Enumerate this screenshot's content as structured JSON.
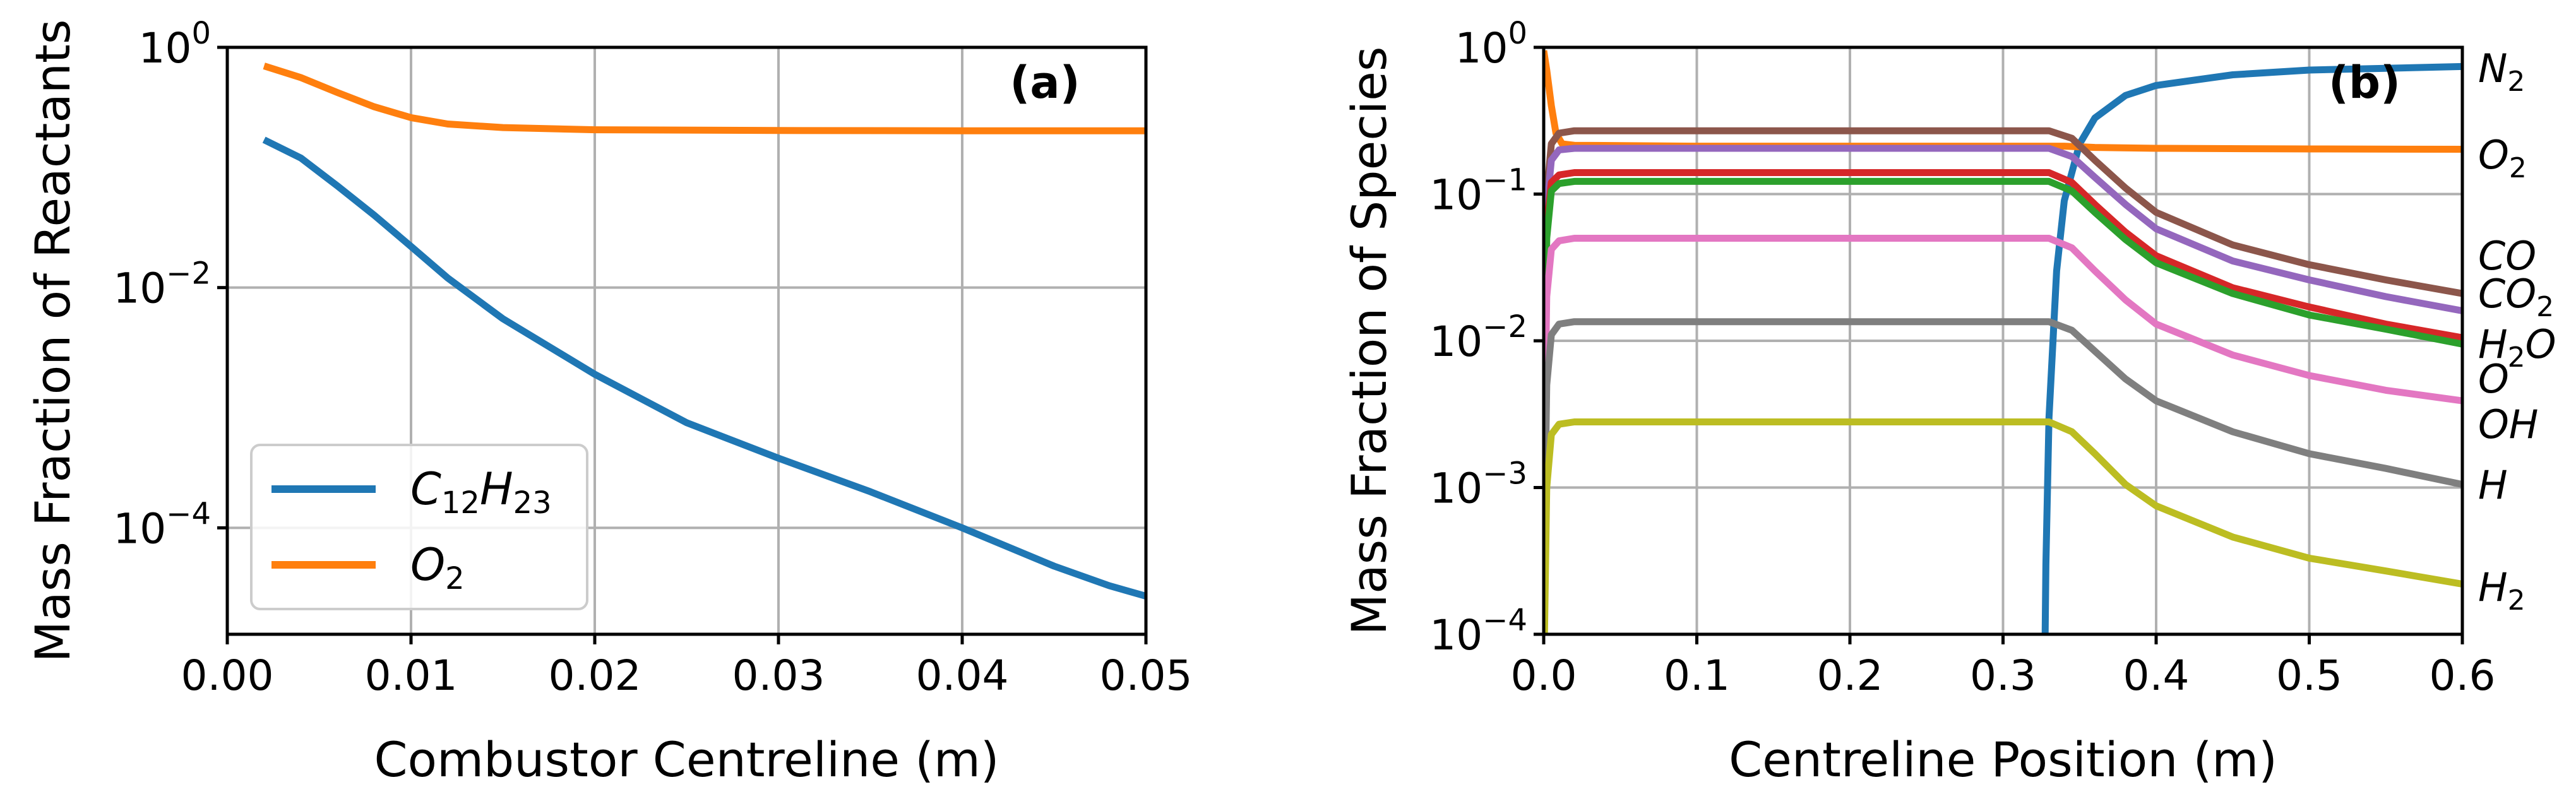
{
  "chart_data": [
    {
      "type": "line",
      "panel_label": "(a)",
      "xlabel": "Combustor Centreline (m)",
      "ylabel": "Mass Fraction of Reactants",
      "x_scale": "linear",
      "y_scale": "log",
      "xlim": [
        0.0,
        0.05
      ],
      "ylim": [
        1.3e-05,
        1.0
      ],
      "grid": true,
      "legend_position": "lower-left",
      "x_ticks": [
        0.0,
        0.01,
        0.02,
        0.03,
        0.04,
        0.05
      ],
      "x_tick_labels": [
        "0.00",
        "0.01",
        "0.02",
        "0.03",
        "0.04",
        "0.05"
      ],
      "y_ticks": [
        0.0001,
        0.01,
        1.0
      ],
      "y_tick_labels": [
        {
          "base": "10",
          "exp": "−4"
        },
        {
          "base": "10",
          "exp": "−2"
        },
        {
          "base": "10",
          "exp": "0"
        }
      ],
      "series": [
        {
          "name": "C12H23",
          "legend": {
            "letter1": "C",
            "sub1": "12",
            "letter2": "H",
            "sub2": "23"
          },
          "color": "#1f77b4",
          "x": [
            0.002,
            0.004,
            0.006,
            0.008,
            0.01,
            0.012,
            0.015,
            0.02,
            0.025,
            0.03,
            0.035,
            0.04,
            0.045,
            0.048,
            0.05
          ],
          "y": [
            0.17,
            0.12,
            0.07,
            0.04,
            0.022,
            0.012,
            0.0055,
            0.0019,
            0.00075,
            0.00038,
            0.0002,
            0.0001,
            4.8e-05,
            3.3e-05,
            2.7e-05
          ]
        },
        {
          "name": "O2",
          "legend": {
            "letter1": "O",
            "sub1": "2"
          },
          "color": "#ff7f0e",
          "x": [
            0.002,
            0.004,
            0.006,
            0.008,
            0.01,
            0.012,
            0.015,
            0.02,
            0.03,
            0.04,
            0.05
          ],
          "y": [
            0.7,
            0.56,
            0.42,
            0.32,
            0.26,
            0.23,
            0.215,
            0.206,
            0.203,
            0.202,
            0.202
          ]
        }
      ]
    },
    {
      "type": "line",
      "panel_label": "(b)",
      "xlabel": "Centreline Position (m)",
      "ylabel": "Mass Fraction of Species",
      "x_scale": "linear",
      "y_scale": "log",
      "xlim": [
        0.0,
        0.6
      ],
      "ylim": [
        0.0001,
        1.0
      ],
      "grid": true,
      "x_ticks": [
        0.0,
        0.1,
        0.2,
        0.3,
        0.4,
        0.5,
        0.6
      ],
      "x_tick_labels": [
        "0.0",
        "0.1",
        "0.2",
        "0.3",
        "0.4",
        "0.5",
        "0.6"
      ],
      "y_ticks": [
        0.0001,
        0.001,
        0.01,
        0.1,
        1.0
      ],
      "y_tick_labels": [
        {
          "base": "10",
          "exp": "−4"
        },
        {
          "base": "10",
          "exp": "−3"
        },
        {
          "base": "10",
          "exp": "−2"
        },
        {
          "base": "10",
          "exp": "−1"
        },
        {
          "base": "10",
          "exp": "0"
        }
      ],
      "series": [
        {
          "name": "N2",
          "color": "#1f77b4",
          "x": [
            0.3275,
            0.328,
            0.33,
            0.335,
            0.34,
            0.35,
            0.36,
            0.38,
            0.4,
            0.45,
            0.5,
            0.55,
            0.6
          ],
          "y": [
            0.0001,
            0.0003,
            0.003,
            0.03,
            0.09,
            0.22,
            0.33,
            0.47,
            0.55,
            0.65,
            0.7,
            0.72,
            0.74
          ]
        },
        {
          "name": "O2",
          "color": "#ff7f0e",
          "x": [
            0.0,
            0.002,
            0.005,
            0.008,
            0.012,
            0.02,
            0.1,
            0.3,
            0.34,
            0.36,
            0.4,
            0.5,
            0.6
          ],
          "y": [
            0.95,
            0.7,
            0.4,
            0.26,
            0.22,
            0.215,
            0.212,
            0.212,
            0.212,
            0.208,
            0.205,
            0.203,
            0.202
          ]
        },
        {
          "name": "CO",
          "color": "#8c564b",
          "x": [
            0.0005,
            0.002,
            0.005,
            0.01,
            0.02,
            0.33,
            0.345,
            0.36,
            0.38,
            0.4,
            0.45,
            0.5,
            0.55,
            0.6
          ],
          "y": [
            0.01,
            0.1,
            0.22,
            0.26,
            0.27,
            0.27,
            0.24,
            0.17,
            0.11,
            0.075,
            0.045,
            0.033,
            0.026,
            0.021
          ]
        },
        {
          "name": "CO2",
          "color": "#9467bd",
          "x": [
            0.0005,
            0.002,
            0.005,
            0.01,
            0.02,
            0.33,
            0.345,
            0.36,
            0.38,
            0.4,
            0.45,
            0.5,
            0.55,
            0.6
          ],
          "y": [
            0.008,
            0.08,
            0.17,
            0.2,
            0.205,
            0.205,
            0.18,
            0.13,
            0.085,
            0.058,
            0.035,
            0.026,
            0.02,
            0.016
          ]
        },
        {
          "name": "H2O",
          "color": "#d62728",
          "x": [
            0.0005,
            0.002,
            0.005,
            0.01,
            0.02,
            0.33,
            0.345,
            0.36,
            0.38,
            0.4,
            0.45,
            0.5,
            0.55,
            0.6
          ],
          "y": [
            0.006,
            0.06,
            0.12,
            0.135,
            0.14,
            0.14,
            0.12,
            0.085,
            0.055,
            0.038,
            0.023,
            0.017,
            0.013,
            0.0105
          ]
        },
        {
          "name": "O",
          "color": "#2ca02c",
          "x": [
            0.0005,
            0.002,
            0.005,
            0.01,
            0.02,
            0.33,
            0.345,
            0.36,
            0.38,
            0.4,
            0.45,
            0.5,
            0.55,
            0.6
          ],
          "y": [
            0.005,
            0.05,
            0.105,
            0.118,
            0.122,
            0.122,
            0.105,
            0.075,
            0.049,
            0.034,
            0.021,
            0.015,
            0.012,
            0.0095
          ]
        },
        {
          "name": "OH",
          "color": "#e377c2",
          "x": [
            0.0005,
            0.002,
            0.005,
            0.01,
            0.02,
            0.33,
            0.345,
            0.36,
            0.38,
            0.4,
            0.45,
            0.5,
            0.55,
            0.6
          ],
          "y": [
            0.002,
            0.02,
            0.042,
            0.048,
            0.05,
            0.05,
            0.043,
            0.03,
            0.019,
            0.013,
            0.008,
            0.0058,
            0.0046,
            0.0039
          ]
        },
        {
          "name": "H",
          "color": "#7f7f7f",
          "x": [
            0.0005,
            0.002,
            0.005,
            0.01,
            0.02,
            0.33,
            0.345,
            0.36,
            0.38,
            0.4,
            0.45,
            0.5,
            0.55,
            0.6
          ],
          "y": [
            0.0005,
            0.005,
            0.011,
            0.013,
            0.0135,
            0.0135,
            0.0118,
            0.0085,
            0.0055,
            0.0039,
            0.0024,
            0.0017,
            0.00135,
            0.00105
          ]
        },
        {
          "name": "H2",
          "color": "#bcbd22",
          "x": [
            0.0005,
            0.002,
            0.005,
            0.01,
            0.02,
            0.33,
            0.345,
            0.36,
            0.38,
            0.4,
            0.45,
            0.5,
            0.55,
            0.6
          ],
          "y": [
            0.0001,
            0.001,
            0.0023,
            0.0027,
            0.0028,
            0.0028,
            0.0024,
            0.0017,
            0.00105,
            0.00075,
            0.00046,
            0.00033,
            0.00027,
            0.00022
          ]
        }
      ],
      "species_labels": [
        {
          "letter": "N",
          "sub": "2"
        },
        {
          "letter": "O",
          "sub": "2"
        },
        {
          "letter": "CO",
          "sub": ""
        },
        {
          "letter": "CO",
          "sub": "2"
        },
        {
          "letter": "H",
          "sub": "2",
          "tail": "O"
        },
        {
          "letter": "O",
          "sub": ""
        },
        {
          "letter": "OH",
          "sub": ""
        },
        {
          "letter": "H",
          "sub": ""
        },
        {
          "letter": "H",
          "sub": "2"
        }
      ]
    }
  ]
}
